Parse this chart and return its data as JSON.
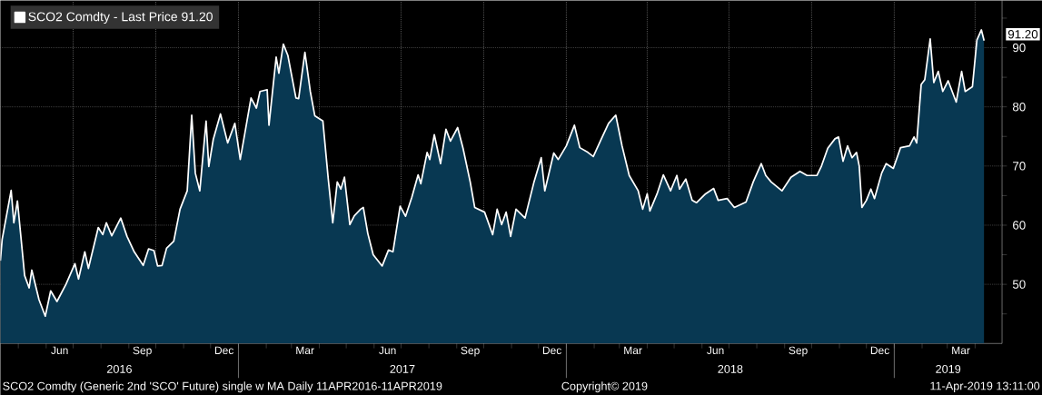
{
  "chart_data": {
    "type": "area",
    "x": [
      "2016-04-11",
      "2016-04-13",
      "2016-04-23",
      "2016-04-26",
      "2016-04-30",
      "2016-05-08",
      "2016-05-13",
      "2016-05-16",
      "2016-05-24",
      "2016-05-31",
      "2016-06-06",
      "2016-06-13",
      "2016-06-23",
      "2016-07-03",
      "2016-07-07",
      "2016-07-14",
      "2016-07-18",
      "2016-07-29",
      "2016-08-03",
      "2016-08-07",
      "2016-08-13",
      "2016-08-23",
      "2016-08-30",
      "2016-09-07",
      "2016-09-17",
      "2016-09-23",
      "2016-09-29",
      "2016-10-03",
      "2016-10-08",
      "2016-10-13",
      "2016-10-21",
      "2016-10-28",
      "2016-11-05",
      "2016-11-10",
      "2016-11-14",
      "2016-11-19",
      "2016-11-26",
      "2016-11-29",
      "2016-12-04",
      "2016-12-12",
      "2016-12-20",
      "2016-12-28",
      "2017-01-03",
      "2017-01-08",
      "2017-01-15",
      "2017-01-21",
      "2017-01-25",
      "2017-02-02",
      "2017-02-04",
      "2017-02-12",
      "2017-02-15",
      "2017-02-20",
      "2017-02-25",
      "2017-03-06",
      "2017-03-09",
      "2017-03-16",
      "2017-03-22",
      "2017-03-27",
      "2017-04-05",
      "2017-04-11",
      "2017-04-16",
      "2017-04-21",
      "2017-04-25",
      "2017-04-29",
      "2017-05-05",
      "2017-05-10",
      "2017-05-17",
      "2017-05-20",
      "2017-05-25",
      "2017-05-31",
      "2017-06-10",
      "2017-06-17",
      "2017-06-22",
      "2017-06-30",
      "2017-07-06",
      "2017-07-13",
      "2017-07-20",
      "2017-07-23",
      "2017-07-30",
      "2017-08-02",
      "2017-08-07",
      "2017-08-14",
      "2017-08-20",
      "2017-08-25",
      "2017-09-02",
      "2017-09-08",
      "2017-09-16",
      "2017-09-21",
      "2017-10-02",
      "2017-10-11",
      "2017-10-16",
      "2017-10-21",
      "2017-10-26",
      "2017-10-31",
      "2017-11-06",
      "2017-11-16",
      "2017-11-26",
      "2017-12-04",
      "2017-12-08",
      "2017-12-18",
      "2017-12-23",
      "2018-01-01",
      "2018-01-10",
      "2018-01-16",
      "2018-01-25",
      "2018-01-31",
      "2018-02-09",
      "2018-02-17",
      "2018-02-25",
      "2018-03-04",
      "2018-03-12",
      "2018-03-22",
      "2018-03-27",
      "2018-04-01",
      "2018-04-04",
      "2018-04-12",
      "2018-04-19",
      "2018-04-27",
      "2018-05-04",
      "2018-05-07",
      "2018-05-14",
      "2018-05-21",
      "2018-05-26",
      "2018-06-05",
      "2018-06-14",
      "2018-06-19",
      "2018-06-29",
      "2018-07-07",
      "2018-07-20",
      "2018-07-28",
      "2018-08-06",
      "2018-08-11",
      "2018-08-17",
      "2018-08-29",
      "2018-09-08",
      "2018-09-18",
      "2018-09-26",
      "2018-10-07",
      "2018-10-12",
      "2018-10-19",
      "2018-10-27",
      "2018-10-31",
      "2018-11-05",
      "2018-11-10",
      "2018-11-15",
      "2018-11-20",
      "2018-11-23",
      "2018-11-26",
      "2018-12-01",
      "2018-12-06",
      "2018-12-10",
      "2018-12-18",
      "2018-12-23",
      "2018-12-31",
      "2019-01-08",
      "2019-01-18",
      "2019-01-23",
      "2019-01-26",
      "2019-01-31",
      "2019-02-04",
      "2019-02-10",
      "2019-02-14",
      "2019-02-19",
      "2019-02-24",
      "2019-03-02",
      "2019-03-11",
      "2019-03-17",
      "2019-03-21",
      "2019-03-29",
      "2019-04-03",
      "2019-04-08",
      "2019-04-11"
    ],
    "series": [
      {
        "name": "SCO2 Comdty - Last Price 91.20",
        "color": "#ffffff",
        "values": [
          54.0,
          57.6,
          65.9,
          60.4,
          64.1,
          51.5,
          49.4,
          52.4,
          47.4,
          44.6,
          48.9,
          47.1,
          50.0,
          53.5,
          50.9,
          55.5,
          52.7,
          59.6,
          58.4,
          60.4,
          58.2,
          61.2,
          58.1,
          55.5,
          53.2,
          56.0,
          55.7,
          53.1,
          53.2,
          56.1,
          57.3,
          62.7,
          65.8,
          78.6,
          68.8,
          65.8,
          77.6,
          69.9,
          74.5,
          78.8,
          73.9,
          77.2,
          71.1,
          75.4,
          81.5,
          79.8,
          82.6,
          82.9,
          76.9,
          88.4,
          85.7,
          90.6,
          88.7,
          81.5,
          81.4,
          89.2,
          82.6,
          78.5,
          77.6,
          67.8,
          60.4,
          67.3,
          66.1,
          68.1,
          60.1,
          61.6,
          62.7,
          63.0,
          58.6,
          55.0,
          53.1,
          55.8,
          55.5,
          63.2,
          61.5,
          64.7,
          68.5,
          67.0,
          72.3,
          71.1,
          75.3,
          70.4,
          76.2,
          74.2,
          76.5,
          73.0,
          67.3,
          63.0,
          62.2,
          58.4,
          62.7,
          60.1,
          62.2,
          58.1,
          62.7,
          61.2,
          67.3,
          71.4,
          65.8,
          72.2,
          71.1,
          73.4,
          76.9,
          73.1,
          72.3,
          71.6,
          74.6,
          77.2,
          78.6,
          73.4,
          68.4,
          65.8,
          62.7,
          65.3,
          62.4,
          65.3,
          68.5,
          65.8,
          68.4,
          66.1,
          67.8,
          64.2,
          63.8,
          65.3,
          66.2,
          64.2,
          64.5,
          63.0,
          63.9,
          67.3,
          70.4,
          68.4,
          67.3,
          65.8,
          68.1,
          69.1,
          68.4,
          68.4,
          70.0,
          73.0,
          74.6,
          74.9,
          70.8,
          73.4,
          71.4,
          72.3,
          70.0,
          63.0,
          64.2,
          66.1,
          64.5,
          68.8,
          70.4,
          69.6,
          73.1,
          73.4,
          74.9,
          73.9,
          83.8,
          84.6,
          91.5,
          84.1,
          86.0,
          82.6,
          84.4,
          80.8,
          86.0,
          82.6,
          83.4,
          91.3,
          93.0,
          91.2
        ]
      }
    ],
    "xlim": [
      "2016-04-11",
      "2019-05-01"
    ],
    "ylim": [
      40,
      98
    ],
    "xticks": [
      {
        "value": "2016-05-01",
        "label": null
      },
      {
        "value": "2016-06-01",
        "label": null
      },
      {
        "value": "2016-07-01",
        "label": null
      },
      {
        "value": "2016-08-01",
        "label": null
      },
      {
        "value": "2016-09-01",
        "label": null
      },
      {
        "value": "2016-10-01",
        "label": null
      },
      {
        "value": "2016-11-01",
        "label": null
      },
      {
        "value": "2016-12-01",
        "label": null
      },
      {
        "value": "2017-01-01",
        "label": null
      },
      {
        "value": "2017-02-01",
        "label": null
      },
      {
        "value": "2017-03-01",
        "label": null
      },
      {
        "value": "2017-04-01",
        "label": null
      },
      {
        "value": "2017-05-01",
        "label": null
      },
      {
        "value": "2017-06-01",
        "label": null
      },
      {
        "value": "2017-07-01",
        "label": null
      },
      {
        "value": "2017-08-01",
        "label": null
      },
      {
        "value": "2017-09-01",
        "label": null
      },
      {
        "value": "2017-10-01",
        "label": null
      },
      {
        "value": "2017-11-01",
        "label": null
      },
      {
        "value": "2017-12-01",
        "label": null
      },
      {
        "value": "2018-01-01",
        "label": null
      },
      {
        "value": "2018-02-01",
        "label": null
      },
      {
        "value": "2018-03-01",
        "label": null
      },
      {
        "value": "2018-04-01",
        "label": null
      },
      {
        "value": "2018-05-01",
        "label": null
      },
      {
        "value": "2018-06-01",
        "label": null
      },
      {
        "value": "2018-07-01",
        "label": null
      },
      {
        "value": "2018-08-01",
        "label": null
      },
      {
        "value": "2018-09-01",
        "label": null
      },
      {
        "value": "2018-10-01",
        "label": null
      },
      {
        "value": "2018-11-01",
        "label": null
      },
      {
        "value": "2018-12-01",
        "label": null
      },
      {
        "value": "2019-01-01",
        "label": null
      },
      {
        "value": "2019-02-01",
        "label": null
      },
      {
        "value": "2019-03-01",
        "label": null
      },
      {
        "value": "2019-04-01",
        "label": null
      },
      {
        "value": "2016-06-16",
        "label": "Jun"
      },
      {
        "value": "2016-09-16",
        "label": "Sep"
      },
      {
        "value": "2016-12-16",
        "label": "Dec"
      },
      {
        "value": "2017-03-16",
        "label": "Mar"
      },
      {
        "value": "2017-06-16",
        "label": "Jun"
      },
      {
        "value": "2017-09-16",
        "label": "Sep"
      },
      {
        "value": "2017-12-16",
        "label": "Dec"
      },
      {
        "value": "2018-03-16",
        "label": "Mar"
      },
      {
        "value": "2018-06-16",
        "label": "Jun"
      },
      {
        "value": "2018-09-16",
        "label": "Sep"
      },
      {
        "value": "2018-12-16",
        "label": "Dec"
      },
      {
        "value": "2019-03-16",
        "label": "Mar"
      }
    ],
    "yticks": [
      {
        "value": 45,
        "label": null
      },
      50,
      {
        "value": 55,
        "label": null
      },
      60,
      {
        "value": 65,
        "label": null
      },
      70,
      {
        "value": 75,
        "label": null
      },
      80,
      {
        "value": 85,
        "label": null
      },
      90,
      {
        "value": 95,
        "label": null
      }
    ],
    "grid": true,
    "legend": "top left",
    "annotations": [
      {
        "text": "91.20",
        "x": "2019-04-11",
        "y": 91.2
      },
      "2016",
      "2017",
      "2018",
      "2019",
      "SCO2 Comdty (Generic 2nd 'SCO' Future) single w MA  Daily 11APR2016-11APR2019",
      "Copyright© 2019",
      "11-Apr-2019 13:11:00"
    ]
  }
}
